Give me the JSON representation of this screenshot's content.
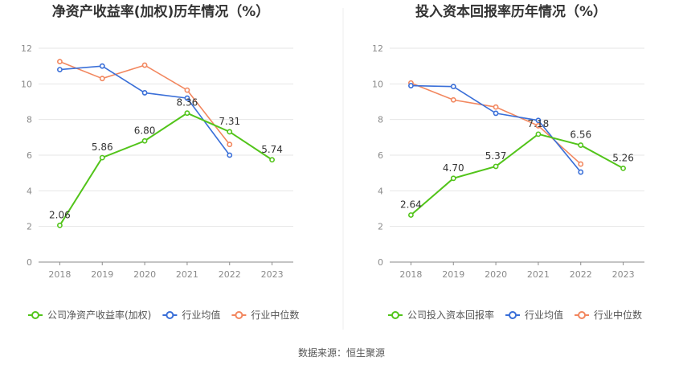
{
  "source": "数据来源：恒生聚源",
  "colors": {
    "company": "#52c41a",
    "industry_avg": "#3a6fd8",
    "industry_median": "#f2875f",
    "grid": "#e6e6e6",
    "text": "#333333"
  },
  "chart_data": [
    {
      "type": "line",
      "title": "净资产收益率(加权)历年情况（%）",
      "x": [
        "2018",
        "2019",
        "2020",
        "2021",
        "2022",
        "2023"
      ],
      "ylim": [
        0,
        12
      ],
      "yticks": [
        "0",
        "2",
        "4",
        "6",
        "8",
        "10",
        "12"
      ],
      "grid": true,
      "legend_position": "bottom",
      "series": [
        {
          "name": "公司净资产收益率(加权)",
          "key": "company",
          "values": [
            2.06,
            5.86,
            6.8,
            8.36,
            7.31,
            5.74
          ],
          "labels": [
            "2.06",
            "5.86",
            "6.80",
            "8.36",
            "7.31",
            "5.74"
          ]
        },
        {
          "name": "行业均值",
          "key": "industry_avg",
          "values": [
            10.8,
            11.0,
            9.5,
            9.2,
            6.0,
            null
          ]
        },
        {
          "name": "行业中位数",
          "key": "industry_median",
          "values": [
            11.25,
            10.3,
            11.05,
            9.65,
            6.6,
            null
          ]
        }
      ]
    },
    {
      "type": "line",
      "title": "投入资本回报率历年情况（%）",
      "x": [
        "2018",
        "2019",
        "2020",
        "2021",
        "2022",
        "2023"
      ],
      "ylim": [
        0,
        12
      ],
      "yticks": [
        "0",
        "2",
        "4",
        "6",
        "8",
        "10",
        "12"
      ],
      "grid": true,
      "legend_position": "bottom",
      "series": [
        {
          "name": "公司投入资本回报率",
          "key": "company",
          "values": [
            2.64,
            4.7,
            5.37,
            7.18,
            6.56,
            5.26
          ],
          "labels": [
            "2.64",
            "4.70",
            "5.37",
            "7.18",
            "6.56",
            "5.26"
          ]
        },
        {
          "name": "行业均值",
          "key": "industry_avg",
          "values": [
            9.9,
            9.85,
            8.35,
            7.95,
            5.05,
            null
          ]
        },
        {
          "name": "行业中位数",
          "key": "industry_median",
          "values": [
            10.05,
            9.1,
            8.7,
            7.65,
            5.5,
            null
          ]
        }
      ]
    }
  ]
}
